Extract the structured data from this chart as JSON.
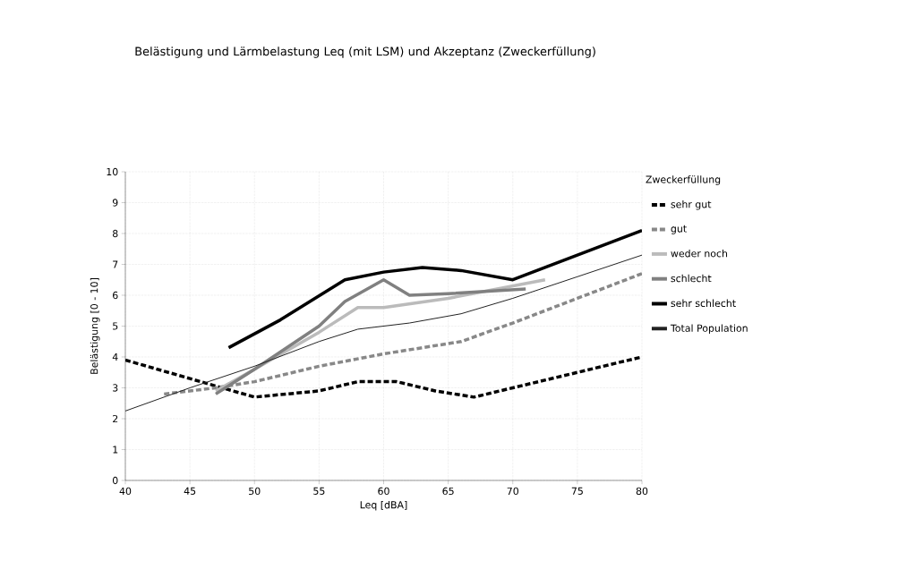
{
  "chart_data": {
    "type": "line",
    "title": "Belästigung und Lärmbelastung Leq (mit LSM) und Akzeptanz (Zweckerfüllung)",
    "xlabel": "Leq [dBA]",
    "ylabel": "Belästigung [0 - 10]",
    "legend_title": "Zweckerfüllung",
    "xlim": [
      40,
      80
    ],
    "xticks": [
      40,
      45,
      50,
      55,
      60,
      65,
      70,
      75,
      80
    ],
    "ylim": [
      0,
      10
    ],
    "yticks": [
      0,
      1,
      2,
      3,
      4,
      5,
      6,
      7,
      8,
      9,
      10
    ],
    "grid": true,
    "legend": "right",
    "series": [
      {
        "name": "sehr gut",
        "color": "#000000",
        "line_style": "dashed",
        "x": [
          40,
          45,
          50,
          55,
          58,
          61,
          64,
          67,
          70,
          75,
          80
        ],
        "values": [
          3.9,
          3.3,
          2.7,
          2.9,
          3.2,
          3.2,
          2.9,
          2.7,
          3.0,
          3.5,
          4.0
        ]
      },
      {
        "name": "gut",
        "color": "#888888",
        "line_style": "dashed",
        "x": [
          43,
          47,
          50,
          55,
          60,
          66,
          70,
          75,
          80
        ],
        "values": [
          2.8,
          3.0,
          3.2,
          3.7,
          4.1,
          4.5,
          5.1,
          5.9,
          6.7
        ]
      },
      {
        "name": "weder noch",
        "color": "#bbbbbb",
        "line_style": "solid",
        "x": [
          47,
          50,
          55,
          58,
          60,
          65,
          72.5
        ],
        "values": [
          2.9,
          3.6,
          4.8,
          5.6,
          5.6,
          5.9,
          6.5
        ]
      },
      {
        "name": "schlecht",
        "color": "#808080",
        "line_style": "solid",
        "x": [
          47,
          50,
          55,
          57,
          60,
          62,
          65,
          71
        ],
        "values": [
          2.8,
          3.6,
          5.0,
          5.8,
          6.5,
          6.0,
          6.05,
          6.2
        ]
      },
      {
        "name": "sehr schlecht",
        "color": "#000000",
        "line_style": "solid",
        "x": [
          48,
          52,
          57,
          60,
          63,
          66,
          70,
          75,
          80
        ],
        "values": [
          4.3,
          5.2,
          6.5,
          6.75,
          6.9,
          6.8,
          6.5,
          7.3,
          8.1
        ]
      },
      {
        "name": "Total Population",
        "color": "#222222",
        "line_style": "solid",
        "x": [
          40,
          45,
          50,
          55,
          58,
          62,
          66,
          70,
          75,
          80
        ],
        "values": [
          2.25,
          3.0,
          3.7,
          4.5,
          4.9,
          5.1,
          5.4,
          5.9,
          6.6,
          7.3
        ]
      }
    ]
  }
}
